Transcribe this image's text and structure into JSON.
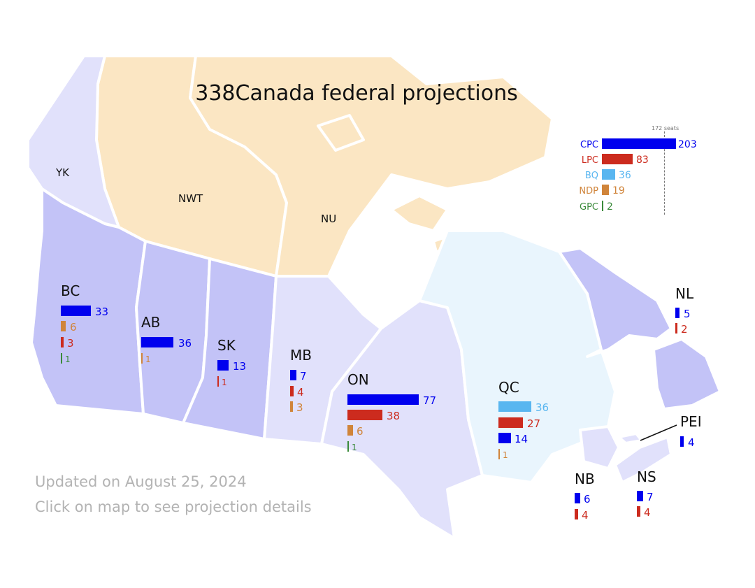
{
  "title": "338Canada federal projections",
  "colors": {
    "CPC": "#0000ee",
    "LPC": "#cc2b1e",
    "BQ": "#59b6f0",
    "NDP": "#d0843a",
    "GPC": "#3a8a3a"
  },
  "legend": {
    "majority_label": "172 seats",
    "items": [
      {
        "party": "CPC",
        "seats": "203"
      },
      {
        "party": "LPC",
        "seats": "83"
      },
      {
        "party": "BQ",
        "seats": "36"
      },
      {
        "party": "NDP",
        "seats": "19"
      },
      {
        "party": "GPC",
        "seats": "2"
      }
    ]
  },
  "territories": {
    "YK": "YK",
    "NWT": "NWT",
    "NU": "NU"
  },
  "provinces": {
    "BC": {
      "label": "BC",
      "seats": [
        {
          "party": "CPC",
          "n": "33"
        },
        {
          "party": "NDP",
          "n": "6"
        },
        {
          "party": "LPC",
          "n": "3"
        },
        {
          "party": "GPC",
          "n": "1"
        }
      ]
    },
    "AB": {
      "label": "AB",
      "seats": [
        {
          "party": "CPC",
          "n": "36"
        },
        {
          "party": "NDP",
          "n": "1"
        }
      ]
    },
    "SK": {
      "label": "SK",
      "seats": [
        {
          "party": "CPC",
          "n": "13"
        },
        {
          "party": "LPC",
          "n": "1"
        }
      ]
    },
    "MB": {
      "label": "MB",
      "seats": [
        {
          "party": "CPC",
          "n": "7"
        },
        {
          "party": "LPC",
          "n": "4"
        },
        {
          "party": "NDP",
          "n": "3"
        }
      ]
    },
    "ON": {
      "label": "ON",
      "seats": [
        {
          "party": "CPC",
          "n": "77"
        },
        {
          "party": "LPC",
          "n": "38"
        },
        {
          "party": "NDP",
          "n": "6"
        },
        {
          "party": "GPC",
          "n": "1"
        }
      ]
    },
    "QC": {
      "label": "QC",
      "seats": [
        {
          "party": "BQ",
          "n": "36"
        },
        {
          "party": "LPC",
          "n": "27"
        },
        {
          "party": "CPC",
          "n": "14"
        },
        {
          "party": "NDP",
          "n": "1"
        }
      ]
    },
    "NL": {
      "label": "NL",
      "seats": [
        {
          "party": "CPC",
          "n": "5"
        },
        {
          "party": "LPC",
          "n": "2"
        }
      ]
    },
    "PEI": {
      "label": "PEI",
      "seats": [
        {
          "party": "CPC",
          "n": "4"
        }
      ]
    },
    "NB": {
      "label": "NB",
      "seats": [
        {
          "party": "CPC",
          "n": "6"
        },
        {
          "party": "LPC",
          "n": "4"
        }
      ]
    },
    "NS": {
      "label": "NS",
      "seats": [
        {
          "party": "CPC",
          "n": "7"
        },
        {
          "party": "LPC",
          "n": "4"
        }
      ]
    }
  },
  "footer": {
    "updated": "Updated on August 25, 2024",
    "hint": "Click on map to see projection details"
  }
}
